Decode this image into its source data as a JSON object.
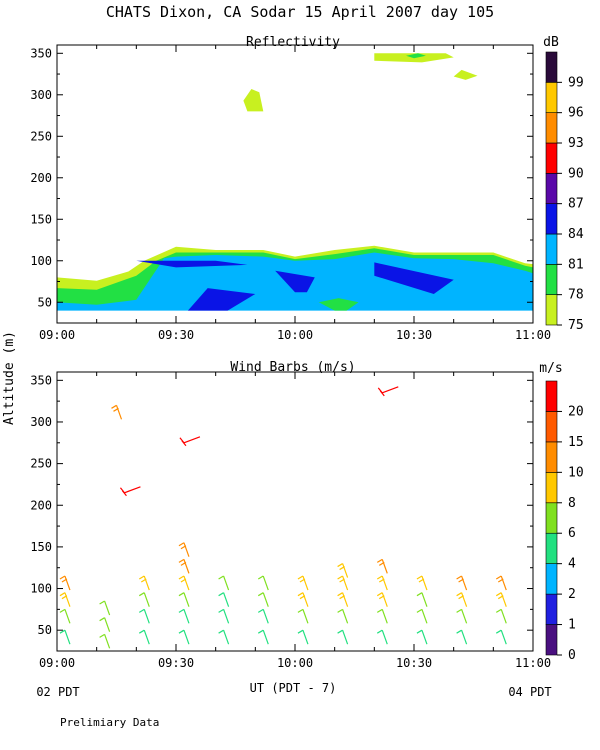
{
  "header": {
    "title": "CHATS Dixon, CA  Sodar  15 April 2007  day 105"
  },
  "footer": {
    "note": "Prelimiary Data"
  },
  "colors": {
    "cyan_fill": "#00B4FF",
    "blue_fill": "#0A14E6",
    "green_fill": "#22E044",
    "yellowgreen_fill": "#C8F020"
  },
  "chart_data": [
    {
      "type": "heatmap",
      "title": "Reflectivity",
      "ylabel": "Altitude (m)",
      "xlabel": "UT  (PDT - 7)",
      "xlim": [
        "09:00",
        "11:00"
      ],
      "ylim": [
        25,
        360
      ],
      "x_ticks": [
        "09:00",
        "09:30",
        "10:00",
        "10:30",
        "11:00"
      ],
      "y_ticks": [
        50,
        100,
        150,
        200,
        250,
        300,
        350
      ],
      "x_sublabels": {
        "left": "02 PDT",
        "right": "04 PDT"
      },
      "colorbar": {
        "unit": "dB",
        "levels": [
          75,
          78,
          81,
          84,
          87,
          90,
          93,
          96,
          99
        ],
        "colors": [
          "#C8F020",
          "#22E044",
          "#00B4FF",
          "#0A14E6",
          "#5A08A8",
          "#FF0000",
          "#FF8C00",
          "#FFC800",
          "#2A0A3A"
        ]
      },
      "regions": [
        {
          "level": 75,
          "points": [
            [
              "09:00",
              80
            ],
            [
              "09:10",
              76
            ],
            [
              "09:18",
              87
            ],
            [
              "09:22",
              100
            ],
            [
              "09:30",
              117
            ],
            [
              "09:40",
              113
            ],
            [
              "09:52",
              113
            ],
            [
              "10:00",
              105
            ],
            [
              "10:10",
              113
            ],
            [
              "10:20",
              118
            ],
            [
              "10:30",
              110
            ],
            [
              "10:40",
              110
            ],
            [
              "10:50",
              110
            ],
            [
              "10:58",
              97
            ],
            [
              "11:00",
              96
            ],
            [
              "11:00",
              42
            ],
            [
              "09:00",
              42
            ]
          ]
        },
        {
          "level": 78,
          "points": [
            [
              "09:00",
              67
            ],
            [
              "09:10",
              65
            ],
            [
              "09:20",
              82
            ],
            [
              "09:25",
              100
            ],
            [
              "09:30",
              110
            ],
            [
              "09:40",
              110
            ],
            [
              "09:52",
              110
            ],
            [
              "10:00",
              102
            ],
            [
              "10:10",
              108
            ],
            [
              "10:20",
              115
            ],
            [
              "10:30",
              107
            ],
            [
              "10:40",
              107
            ],
            [
              "10:50",
              107
            ],
            [
              "10:58",
              94
            ],
            [
              "11:00",
              92
            ],
            [
              "11:00",
              42
            ],
            [
              "09:00",
              42
            ]
          ]
        },
        {
          "level": 81,
          "points": [
            [
              "09:00",
              50
            ],
            [
              "09:10",
              47
            ],
            [
              "09:20",
              53
            ],
            [
              "09:27",
              103
            ],
            [
              "09:30",
              105
            ],
            [
              "09:40",
              107
            ],
            [
              "09:52",
              105
            ],
            [
              "10:00",
              100
            ],
            [
              "10:10",
              102
            ],
            [
              "10:20",
              110
            ],
            [
              "10:30",
              103
            ],
            [
              "10:40",
              102
            ],
            [
              "10:50",
              97
            ],
            [
              "10:58",
              88
            ],
            [
              "11:00",
              85
            ],
            [
              "11:00",
              40
            ],
            [
              "09:00",
              40
            ]
          ]
        },
        {
          "level": 84,
          "points": [
            [
              "09:20",
              100
            ],
            [
              "09:40",
              100
            ],
            [
              "09:48",
              95
            ],
            [
              "09:30",
              92
            ]
          ]
        },
        {
          "level": 84,
          "points": [
            [
              "09:33",
              40
            ],
            [
              "09:43",
              40
            ],
            [
              "09:50",
              60
            ],
            [
              "09:38",
              67
            ]
          ]
        },
        {
          "level": 84,
          "points": [
            [
              "09:55",
              88
            ],
            [
              "10:05",
              80
            ],
            [
              "10:03",
              62
            ],
            [
              "10:00",
              62
            ]
          ]
        },
        {
          "level": 84,
          "points": [
            [
              "10:20",
              98
            ],
            [
              "10:40",
              77
            ],
            [
              "10:35",
              60
            ],
            [
              "10:20",
              82
            ]
          ]
        },
        {
          "level": 78,
          "points": [
            [
              "10:11",
              55
            ],
            [
              "10:16",
              50
            ],
            [
              "10:13",
              40
            ],
            [
              "10:10",
              40
            ],
            [
              "10:06",
              50
            ]
          ]
        },
        {
          "level": 75,
          "points": [
            [
              "09:47",
              293
            ],
            [
              "09:49",
              307
            ],
            [
              "09:51",
              303
            ],
            [
              "09:52",
              280
            ],
            [
              "09:48",
              280
            ]
          ]
        },
        {
          "level": 75,
          "points": [
            [
              "10:20",
              350
            ],
            [
              "10:38",
              350
            ],
            [
              "10:40",
              345
            ],
            [
              "10:32",
              339
            ],
            [
              "10:20",
              341
            ]
          ]
        },
        {
          "level": 78,
          "points": [
            [
              "10:28",
              347
            ],
            [
              "10:31",
              350
            ],
            [
              "10:33",
              347
            ],
            [
              "10:30",
              344
            ]
          ]
        },
        {
          "level": 75,
          "points": [
            [
              "10:40",
              322
            ],
            [
              "10:42",
              330
            ],
            [
              "10:46",
              323
            ],
            [
              "10:43",
              318
            ]
          ]
        }
      ]
    },
    {
      "type": "scatter",
      "title": "Wind Barbs (m/s)",
      "ylabel": "Altitude (m)",
      "xlabel": "UT  (PDT - 7)",
      "xlim": [
        "09:00",
        "11:00"
      ],
      "ylim": [
        25,
        360
      ],
      "x_ticks": [
        "09:00",
        "09:30",
        "10:00",
        "10:30",
        "11:00"
      ],
      "y_ticks": [
        50,
        100,
        150,
        200,
        250,
        300,
        350
      ],
      "colorbar": {
        "unit": "m/s",
        "levels": [
          0,
          1,
          2,
          4,
          6,
          8,
          10,
          15,
          20
        ],
        "colors": [
          "#4A1080",
          "#2020E0",
          "#00B4FF",
          "#22E080",
          "#80E020",
          "#FFC800",
          "#FF8C00",
          "#FF5A00",
          "#FF0000"
        ]
      },
      "barbs": [
        {
          "time": "09:02",
          "alt": 50,
          "speed": 4
        },
        {
          "time": "09:02",
          "alt": 75,
          "speed": 6
        },
        {
          "time": "09:02",
          "alt": 95,
          "speed": 8
        },
        {
          "time": "09:02",
          "alt": 115,
          "speed": 10
        },
        {
          "time": "09:12",
          "alt": 45,
          "speed": 6
        },
        {
          "time": "09:12",
          "alt": 65,
          "speed": 6
        },
        {
          "time": "09:12",
          "alt": 85,
          "speed": 6
        },
        {
          "time": "09:15",
          "alt": 320,
          "speed": 10
        },
        {
          "time": "09:17",
          "alt": 215,
          "speed": 20
        },
        {
          "time": "09:22",
          "alt": 50,
          "speed": 4
        },
        {
          "time": "09:22",
          "alt": 75,
          "speed": 4
        },
        {
          "time": "09:22",
          "alt": 95,
          "speed": 6
        },
        {
          "time": "09:22",
          "alt": 115,
          "speed": 8
        },
        {
          "time": "09:32",
          "alt": 50,
          "speed": 4
        },
        {
          "time": "09:32",
          "alt": 75,
          "speed": 4
        },
        {
          "time": "09:32",
          "alt": 95,
          "speed": 6
        },
        {
          "time": "09:32",
          "alt": 115,
          "speed": 8
        },
        {
          "time": "09:32",
          "alt": 135,
          "speed": 10
        },
        {
          "time": "09:32",
          "alt": 155,
          "speed": 10
        },
        {
          "time": "09:32",
          "alt": 275,
          "speed": 20
        },
        {
          "time": "09:42",
          "alt": 50,
          "speed": 4
        },
        {
          "time": "09:42",
          "alt": 75,
          "speed": 4
        },
        {
          "time": "09:42",
          "alt": 95,
          "speed": 4
        },
        {
          "time": "09:42",
          "alt": 115,
          "speed": 6
        },
        {
          "time": "09:52",
          "alt": 50,
          "speed": 4
        },
        {
          "time": "09:52",
          "alt": 75,
          "speed": 4
        },
        {
          "time": "09:52",
          "alt": 95,
          "speed": 6
        },
        {
          "time": "09:52",
          "alt": 115,
          "speed": 6
        },
        {
          "time": "10:02",
          "alt": 50,
          "speed": 4
        },
        {
          "time": "10:02",
          "alt": 75,
          "speed": 6
        },
        {
          "time": "10:02",
          "alt": 95,
          "speed": 8
        },
        {
          "time": "10:02",
          "alt": 115,
          "speed": 8
        },
        {
          "time": "10:12",
          "alt": 50,
          "speed": 4
        },
        {
          "time": "10:12",
          "alt": 75,
          "speed": 6
        },
        {
          "time": "10:12",
          "alt": 95,
          "speed": 8
        },
        {
          "time": "10:12",
          "alt": 115,
          "speed": 8
        },
        {
          "time": "10:12",
          "alt": 130,
          "speed": 8
        },
        {
          "time": "10:22",
          "alt": 50,
          "speed": 4
        },
        {
          "time": "10:22",
          "alt": 75,
          "speed": 6
        },
        {
          "time": "10:22",
          "alt": 95,
          "speed": 8
        },
        {
          "time": "10:22",
          "alt": 115,
          "speed": 8
        },
        {
          "time": "10:22",
          "alt": 135,
          "speed": 10
        },
        {
          "time": "10:22",
          "alt": 335,
          "speed": 20
        },
        {
          "time": "10:32",
          "alt": 50,
          "speed": 4
        },
        {
          "time": "10:32",
          "alt": 75,
          "speed": 6
        },
        {
          "time": "10:32",
          "alt": 95,
          "speed": 6
        },
        {
          "time": "10:32",
          "alt": 115,
          "speed": 8
        },
        {
          "time": "10:42",
          "alt": 50,
          "speed": 4
        },
        {
          "time": "10:42",
          "alt": 75,
          "speed": 6
        },
        {
          "time": "10:42",
          "alt": 95,
          "speed": 8
        },
        {
          "time": "10:42",
          "alt": 115,
          "speed": 10
        },
        {
          "time": "10:52",
          "alt": 50,
          "speed": 4
        },
        {
          "time": "10:52",
          "alt": 75,
          "speed": 6
        },
        {
          "time": "10:52",
          "alt": 95,
          "speed": 8
        },
        {
          "time": "10:52",
          "alt": 115,
          "speed": 10
        }
      ]
    }
  ]
}
